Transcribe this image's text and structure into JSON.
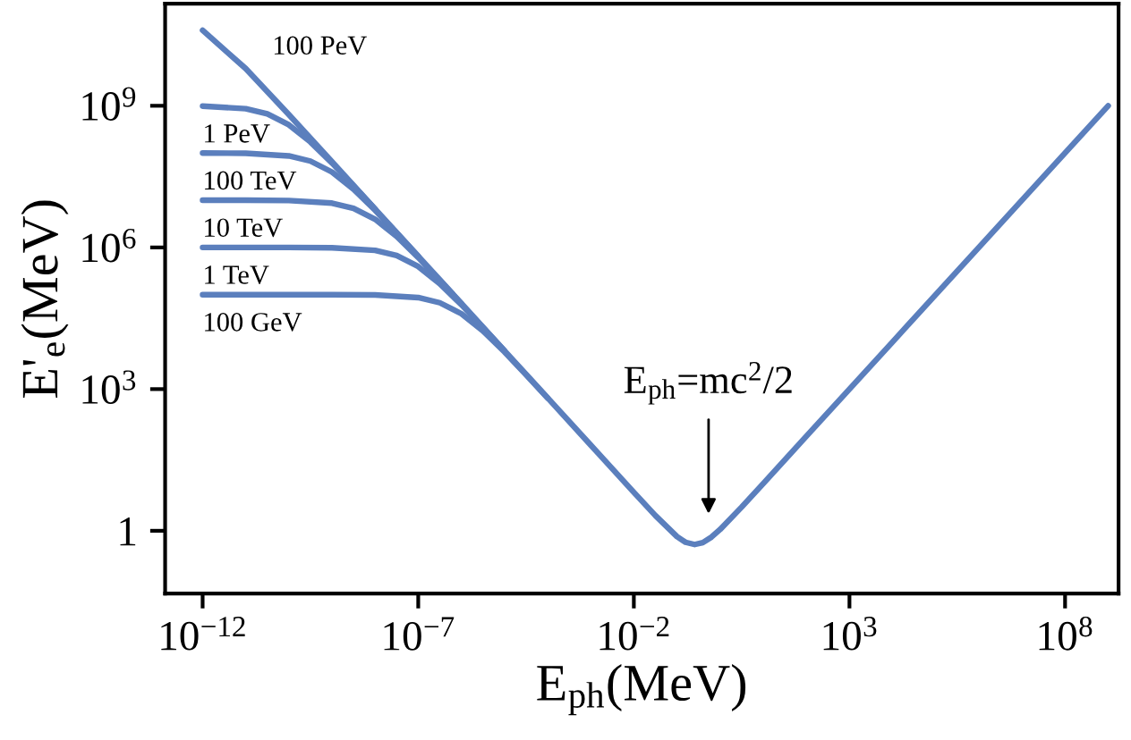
{
  "chart_data": {
    "type": "line",
    "log": "xy",
    "xlabel": "E$_{ph}$(MeV)",
    "ylabel": "E'$_{e}$(MeV)",
    "xlim": [
      1.35e-13,
      1740000000.0
    ],
    "ylim": [
      0.047,
      145000000000.0
    ],
    "xticks": [
      {
        "value": 1e-12,
        "label": "10$^{−12}$"
      },
      {
        "value": 1e-07,
        "label": "10$^{−7}$"
      },
      {
        "value": 0.01,
        "label": "10$^{−2}$"
      },
      {
        "value": 1000,
        "label": "10$^{3}$"
      },
      {
        "value": 100000000.0,
        "label": "10$^{8}$"
      }
    ],
    "yticks": [
      1,
      {
        "value": 1000,
        "label": "10$^{3}$"
      },
      {
        "value": 1000000.0,
        "label": "10$^{6}$"
      },
      {
        "value": 1000000000.0,
        "label": "10$^{9}$"
      }
    ],
    "grid": false,
    "legend": false,
    "marker": "none",
    "line_style": "solid",
    "annotations": [
      "E$_{ph}$=mc$^{2}$/2"
    ],
    "series": [
      {
        "name": "100 PeV",
        "color": "#5b7fbd",
        "x": [
          1e-12,
          1e-11,
          1e-10,
          1e-09,
          1e-08,
          1e-07,
          1e-06,
          1e-05,
          0.0001,
          0.001,
          0.01,
          0.0316,
          0.1,
          0.158,
          0.257,
          0.398,
          0.631,
          1,
          3.16,
          10,
          100,
          10000,
          1000000.0,
          100000000.0,
          1000000000.0
        ],
        "values": [
          39500000000.0,
          6130000000.0,
          649000000.0,
          65300000.0,
          6530000.0,
          653000.0,
          65300.0,
          6530,
          653,
          65.3,
          6.53,
          2.1,
          0.753,
          0.571,
          0.512,
          0.562,
          0.735,
          1.065,
          3.18,
          10,
          100,
          10000,
          1000000.0,
          100000000.0,
          1000000000.0
        ]
      },
      {
        "name": "1 PeV",
        "color": "#5b7fbd",
        "x": [
          1e-12,
          1e-11,
          3.16e-11,
          1e-10,
          3.16e-10,
          1e-09,
          3.16e-09,
          1e-08
        ],
        "values": [
          985000000.0,
          867000000.0,
          674000000.0,
          395000000.0,
          171000000.0,
          61300000.0,
          20200000.0,
          6490000.0
        ]
      },
      {
        "name": "100 TeV",
        "color": "#5b7fbd",
        "x": [
          1e-12,
          1e-11,
          1e-10,
          3.16e-10,
          1e-09,
          3.16e-09,
          1e-08,
          3.16e-08,
          1e-07
        ],
        "values": [
          99800000.0,
          98500000.0,
          86700000.0,
          67400000.0,
          39500000.0,
          17100000.0,
          6130000.0,
          2020000.0,
          649000.0
        ]
      },
      {
        "name": "10 TeV",
        "color": "#5b7fbd",
        "x": [
          1e-12,
          1e-11,
          1e-10,
          1e-09,
          3.16e-09,
          1e-08,
          3.16e-08,
          1e-07,
          3.16e-07,
          1e-06
        ],
        "values": [
          10000000.0,
          9980000.0,
          9850000.0,
          8670000.0,
          6740000.0,
          3950000.0,
          1710000.0,
          613000.0,
          202000.0,
          64900.0
        ]
      },
      {
        "name": "1 TeV",
        "color": "#5b7fbd",
        "x": [
          1e-12,
          1e-10,
          1e-09,
          1e-08,
          3.16e-08,
          1e-07,
          3.16e-07,
          1e-06,
          3.16e-06,
          1e-05
        ],
        "values": [
          1000000.0,
          998000.0,
          985000.0,
          867000.0,
          674000.0,
          395000.0,
          171000.0,
          61300.0,
          20200.0,
          6490
        ]
      },
      {
        "name": "100 GeV",
        "color": "#5b7fbd",
        "x": [
          1e-12,
          1e-09,
          1e-08,
          1e-07,
          3.16e-07,
          1e-06,
          3.16e-06,
          1e-05,
          3.16e-05,
          0.0001
        ],
        "values": [
          100000.0,
          99800.0,
          98500.0,
          86700.0,
          67400.0,
          39500.0,
          17100.0,
          6130,
          2020,
          649
        ]
      }
    ]
  }
}
